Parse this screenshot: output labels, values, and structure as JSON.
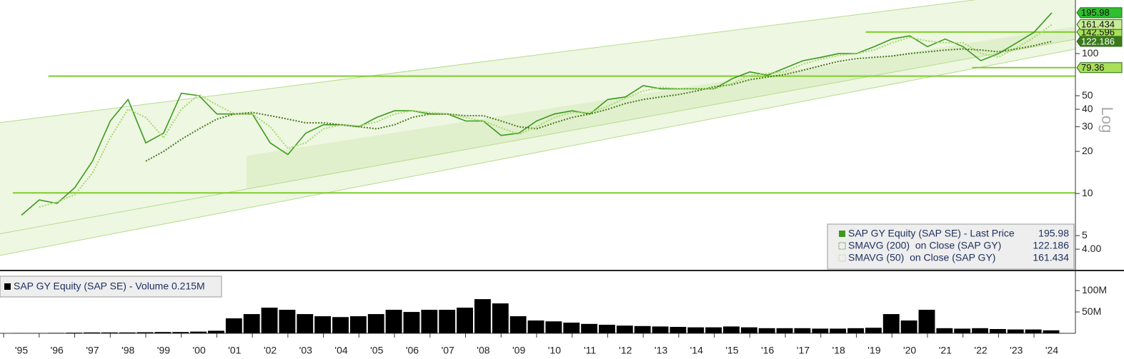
{
  "chart_data": [
    {
      "type": "line",
      "categories": [
        "'95",
        null,
        "'96",
        null,
        "'97",
        null,
        "'98",
        null,
        "'99",
        null,
        "'00",
        null,
        "'01",
        null,
        "'02",
        null,
        "'03",
        null,
        "'04",
        null,
        "'05",
        null,
        "'06",
        null,
        "'07",
        null,
        "'08",
        null,
        "'09",
        null,
        "'10",
        null,
        "'11",
        null,
        "'12",
        null,
        "'13",
        null,
        "'14",
        null,
        "'15",
        null,
        "'16",
        null,
        "'17",
        null,
        "'18",
        null,
        "'19",
        null,
        "'20",
        null,
        "'21",
        null,
        "'22",
        null,
        "'23",
        null,
        "'24"
      ],
      "log_scale": true,
      "y_axis_label": "Log",
      "ylim": [
        2.85,
        241.5
      ],
      "yticks": [
        {
          "value": 4,
          "label": "4.00"
        },
        5,
        10,
        20,
        30,
        40,
        50,
        100
      ],
      "series": [
        {
          "name": "SAP GY Equity (SAP SE) - Last Price",
          "color": "#3c9a1e",
          "last": 195.98,
          "values": [
            7,
            9,
            8.5,
            11,
            17,
            33,
            47,
            23,
            27,
            52,
            50,
            37,
            37,
            37,
            23,
            19,
            27,
            31,
            31,
            30,
            35,
            39,
            39,
            37,
            37,
            33,
            33,
            26,
            27,
            33,
            37,
            39,
            37,
            47,
            49,
            59,
            56,
            56,
            56,
            56,
            66,
            74,
            70,
            79,
            89,
            94,
            100,
            100,
            112,
            127,
            134,
            112,
            127,
            112,
            89,
            100,
            119,
            142,
            195.98
          ]
        },
        {
          "name": "SMAVG (200)  on Close (SAP GY)",
          "color": "#4a7a1c",
          "last": 122.186,
          "values": [
            null,
            null,
            null,
            null,
            null,
            null,
            null,
            17,
            20,
            24.4,
            29,
            34,
            37,
            38,
            36,
            34,
            32,
            32,
            31,
            30,
            29,
            31,
            35,
            37,
            37,
            36,
            36,
            33,
            30,
            29,
            32,
            35,
            37,
            40,
            44,
            47,
            49,
            51,
            54,
            58,
            60,
            65,
            68,
            71,
            76,
            82,
            88,
            92,
            94,
            96,
            100,
            103,
            106,
            108,
            106,
            103,
            108,
            114,
            122.186
          ]
        },
        {
          "name": "SMAVG (50)  on Close (SAP GY)",
          "color": "#a6d86a",
          "last": 161.434,
          "values": [
            null,
            8,
            8.7,
            9.8,
            14,
            25,
            40,
            35,
            25,
            40,
            51,
            43,
            37,
            37,
            30,
            21,
            23,
            29,
            31,
            30.5,
            32.5,
            37,
            39,
            38,
            37,
            35,
            33,
            29.5,
            26.5,
            30,
            35,
            38,
            38,
            42,
            48,
            54,
            57.5,
            56,
            56,
            56,
            61,
            70,
            72,
            74.5,
            84,
            91.5,
            97,
            100,
            106,
            119.5,
            130.5,
            123,
            119.5,
            119.5,
            100.5,
            94.5,
            109.5,
            130.5,
            161.434
          ]
        }
      ],
      "levels": [
        {
          "value": 142.596,
          "start": "'19",
          "tagged": true
        },
        {
          "value": 79.36,
          "start": "'22",
          "tagged": true
        },
        {
          "value": 69,
          "start": "'96",
          "tagged": false
        },
        {
          "value": 10.1,
          "start": "'95",
          "tagged": false
        }
      ],
      "channel": [
        [
          33.6,
          284
        ],
        [
          5.5,
          118
        ],
        [
          3.86,
          100
        ]
      ]
    },
    {
      "type": "bar",
      "legend": "SAP GY Equity (SAP SE) - Volume 0.215M",
      "color": "#000000",
      "ylim": [
        0,
        137000000
      ],
      "yticks": [
        {
          "value": 50000000,
          "label": "50M"
        },
        {
          "value": 100000000,
          "label": "100M"
        }
      ],
      "values": [
        500000,
        500000,
        1000000,
        1500000,
        2000000,
        2000000,
        2000000,
        2500000,
        3000000,
        3000000,
        4000000,
        6000000,
        35000000,
        45000000,
        60000000,
        55000000,
        45000000,
        40000000,
        38000000,
        40000000,
        45000000,
        55000000,
        50000000,
        55000000,
        55000000,
        60000000,
        80000000,
        70000000,
        40000000,
        30000000,
        28000000,
        25000000,
        22000000,
        20000000,
        18000000,
        17000000,
        16000000,
        15000000,
        14000000,
        14000000,
        16000000,
        14000000,
        12000000,
        12000000,
        12000000,
        11000000,
        11000000,
        12000000,
        13000000,
        45000000,
        30000000,
        55000000,
        12000000,
        11000000,
        12000000,
        10000000,
        9000000,
        9000000,
        7000000
      ]
    }
  ]
}
